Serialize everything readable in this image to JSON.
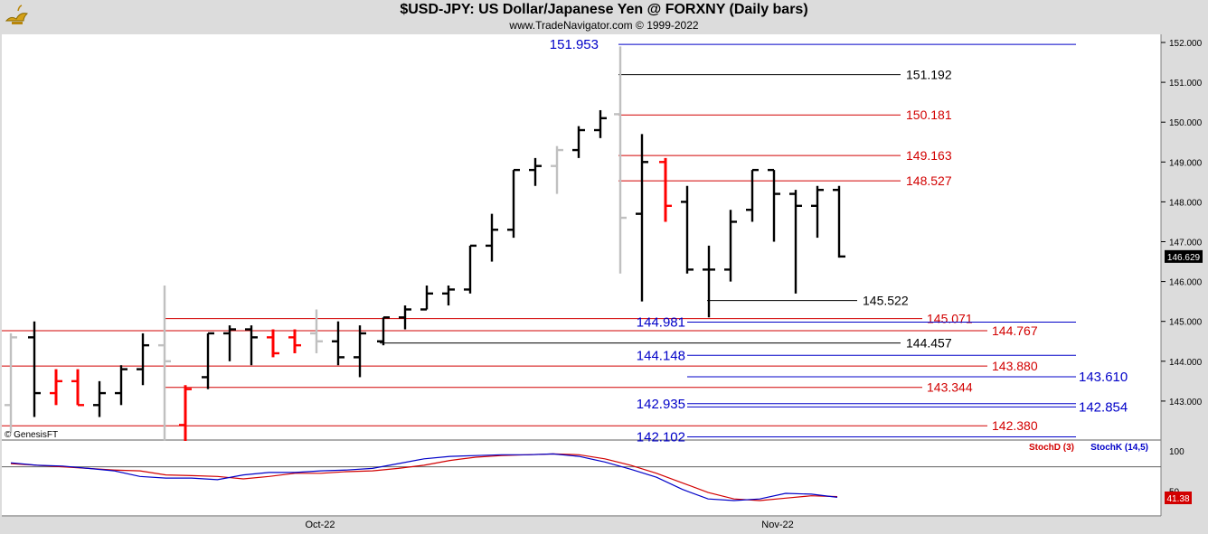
{
  "header": {
    "title": "$USD-JPY:  US Dollar/Japanese Yen @ FORXNY  (Daily bars)",
    "subtitle": "www.TradeNavigator.com © 1999-2022"
  },
  "watermark": "© GenesisFT",
  "colors": {
    "background": "#ffffff",
    "frame": "#dcdcdc",
    "up_bar": "#000000",
    "down_bar": "#ff0000",
    "inactive_bar": "#c0c0c0",
    "blue_level": "#0000c8",
    "red_level": "#d20000",
    "black_level": "#000000",
    "stoch_d": "#d20000",
    "stoch_k": "#0000c8"
  },
  "chart_data": [
    {
      "type": "ohlc",
      "title": "$USD-JPY:  US Dollar/Japanese Yen @ FORXNY  (Daily bars)",
      "x_tick_labels": [
        "Oct-22",
        "Nov-22"
      ],
      "y_ticks": [
        "152.000",
        "151.000",
        "150.000",
        "149.000",
        "148.000",
        "147.000",
        "146.000",
        "145.000",
        "144.000",
        "143.000"
      ],
      "ylim": [
        142.02,
        152.08
      ],
      "last_price": "146.629",
      "bars": [
        {
          "o": 142.9,
          "h": 144.7,
          "l": 142.2,
          "c": 144.6,
          "color": "gray"
        },
        {
          "o": 144.6,
          "h": 145.0,
          "l": 142.6,
          "c": 143.2,
          "color": "black"
        },
        {
          "o": 143.2,
          "h": 143.8,
          "l": 142.9,
          "c": 143.5,
          "color": "red"
        },
        {
          "o": 143.5,
          "h": 143.8,
          "l": 142.9,
          "c": 142.9,
          "color": "red"
        },
        {
          "o": 142.9,
          "h": 143.5,
          "l": 142.6,
          "c": 143.2,
          "color": "black"
        },
        {
          "o": 143.2,
          "h": 143.9,
          "l": 142.9,
          "c": 143.8,
          "color": "black"
        },
        {
          "o": 143.8,
          "h": 144.7,
          "l": 143.4,
          "c": 144.4,
          "color": "black"
        },
        {
          "o": 144.4,
          "h": 145.9,
          "l": 142.0,
          "c": 144.0,
          "color": "gray"
        },
        {
          "o": 142.4,
          "h": 143.4,
          "l": 142.0,
          "c": 143.3,
          "color": "red"
        },
        {
          "o": 143.6,
          "h": 144.7,
          "l": 143.3,
          "c": 144.7,
          "color": "black"
        },
        {
          "o": 144.7,
          "h": 144.9,
          "l": 144.0,
          "c": 144.8,
          "color": "black"
        },
        {
          "o": 144.8,
          "h": 144.9,
          "l": 143.9,
          "c": 144.6,
          "color": "black"
        },
        {
          "o": 144.6,
          "h": 144.8,
          "l": 144.1,
          "c": 144.2,
          "color": "red"
        },
        {
          "o": 144.6,
          "h": 144.8,
          "l": 144.2,
          "c": 144.4,
          "color": "red"
        },
        {
          "o": 144.7,
          "h": 145.3,
          "l": 144.2,
          "c": 144.5,
          "color": "gray"
        },
        {
          "o": 144.5,
          "h": 145.0,
          "l": 143.9,
          "c": 144.1,
          "color": "black"
        },
        {
          "o": 144.1,
          "h": 144.9,
          "l": 143.6,
          "c": 144.7,
          "color": "black"
        },
        {
          "o": 144.5,
          "h": 145.1,
          "l": 144.4,
          "c": 145.1,
          "color": "black"
        },
        {
          "o": 145.1,
          "h": 145.4,
          "l": 144.8,
          "c": 145.3,
          "color": "black"
        },
        {
          "o": 145.3,
          "h": 145.9,
          "l": 145.3,
          "c": 145.7,
          "color": "black"
        },
        {
          "o": 145.7,
          "h": 145.9,
          "l": 145.4,
          "c": 145.8,
          "color": "black"
        },
        {
          "o": 145.8,
          "h": 146.9,
          "l": 145.7,
          "c": 146.9,
          "color": "black"
        },
        {
          "o": 146.9,
          "h": 147.7,
          "l": 146.5,
          "c": 147.3,
          "color": "black"
        },
        {
          "o": 147.3,
          "h": 148.8,
          "l": 147.1,
          "c": 148.8,
          "color": "black"
        },
        {
          "o": 148.8,
          "h": 149.1,
          "l": 148.4,
          "c": 148.9,
          "color": "black"
        },
        {
          "o": 148.9,
          "h": 149.4,
          "l": 148.2,
          "c": 149.3,
          "color": "gray"
        },
        {
          "o": 149.3,
          "h": 149.9,
          "l": 149.1,
          "c": 149.8,
          "color": "black"
        },
        {
          "o": 149.8,
          "h": 150.3,
          "l": 149.6,
          "c": 150.1,
          "color": "black"
        },
        {
          "o": 150.2,
          "h": 151.9,
          "l": 146.2,
          "c": 147.6,
          "color": "gray"
        },
        {
          "o": 147.7,
          "h": 149.7,
          "l": 145.5,
          "c": 149.0,
          "color": "black"
        },
        {
          "o": 149.0,
          "h": 149.1,
          "l": 147.5,
          "c": 147.9,
          "color": "red"
        },
        {
          "o": 148.0,
          "h": 148.4,
          "l": 146.2,
          "c": 146.3,
          "color": "black"
        },
        {
          "o": 146.3,
          "h": 146.9,
          "l": 145.1,
          "c": 146.3,
          "color": "black"
        },
        {
          "o": 146.3,
          "h": 147.8,
          "l": 146.0,
          "c": 147.5,
          "color": "black"
        },
        {
          "o": 147.8,
          "h": 148.8,
          "l": 147.5,
          "c": 148.8,
          "color": "black"
        },
        {
          "o": 148.8,
          "h": 148.8,
          "l": 147.0,
          "c": 148.2,
          "color": "black"
        },
        {
          "o": 148.2,
          "h": 148.3,
          "l": 145.7,
          "c": 147.9,
          "color": "black"
        },
        {
          "o": 147.9,
          "h": 148.4,
          "l": 147.1,
          "c": 148.3,
          "color": "black"
        },
        {
          "o": 148.3,
          "h": 148.4,
          "l": 146.6,
          "c": 146.629,
          "color": "black"
        }
      ],
      "levels": [
        {
          "value": "151.953",
          "color": "blue",
          "label_side": "left"
        },
        {
          "value": "151.192",
          "color": "black",
          "label_side": "right"
        },
        {
          "value": "150.181",
          "color": "red",
          "label_side": "right"
        },
        {
          "value": "149.163",
          "color": "red",
          "label_side": "right"
        },
        {
          "value": "148.527",
          "color": "red",
          "label_side": "right"
        },
        {
          "value": "145.522",
          "color": "black",
          "label_side": "right"
        },
        {
          "value": "145.071",
          "color": "red",
          "label_side": "right"
        },
        {
          "value": "144.981",
          "color": "blue",
          "label_side": "left"
        },
        {
          "value": "144.767",
          "color": "red",
          "label_side": "right"
        },
        {
          "value": "144.457",
          "color": "black",
          "label_side": "right"
        },
        {
          "value": "144.148",
          "color": "blue",
          "label_side": "left"
        },
        {
          "value": "143.880",
          "color": "red",
          "label_side": "right"
        },
        {
          "value": "143.610",
          "color": "blue",
          "label_side": "right"
        },
        {
          "value": "143.344",
          "color": "red",
          "label_side": "right"
        },
        {
          "value": "142.935",
          "color": "blue",
          "label_side": "left"
        },
        {
          "value": "142.854",
          "color": "blue",
          "label_side": "right"
        },
        {
          "value": "142.380",
          "color": "red",
          "label_side": "right"
        },
        {
          "value": "142.102",
          "color": "blue",
          "label_side": "left"
        }
      ]
    },
    {
      "type": "line",
      "legend": [
        "StochD (3)",
        "StochK (14,5)"
      ],
      "y_ticks": [
        "100",
        "50"
      ],
      "ylim": [
        20,
        110
      ],
      "reference_line": 80,
      "last_value": "41.38",
      "series": [
        {
          "name": "StochD (3)",
          "color": "red",
          "values": [
            84,
            82,
            80,
            78,
            76,
            75,
            70,
            69,
            68,
            65,
            68,
            72,
            72,
            74,
            75,
            78,
            82,
            88,
            92,
            94,
            95,
            96,
            95,
            90,
            82,
            72,
            60,
            48,
            40,
            38,
            41,
            44,
            43
          ]
        },
        {
          "name": "StochK (14,5)",
          "color": "blue",
          "values": [
            85,
            82,
            81,
            78,
            75,
            68,
            66,
            66,
            64,
            70,
            73,
            73,
            75,
            76,
            78,
            84,
            90,
            93,
            94,
            95,
            95,
            96,
            93,
            86,
            77,
            67,
            52,
            40,
            38,
            40,
            47,
            46,
            42
          ]
        }
      ]
    }
  ]
}
